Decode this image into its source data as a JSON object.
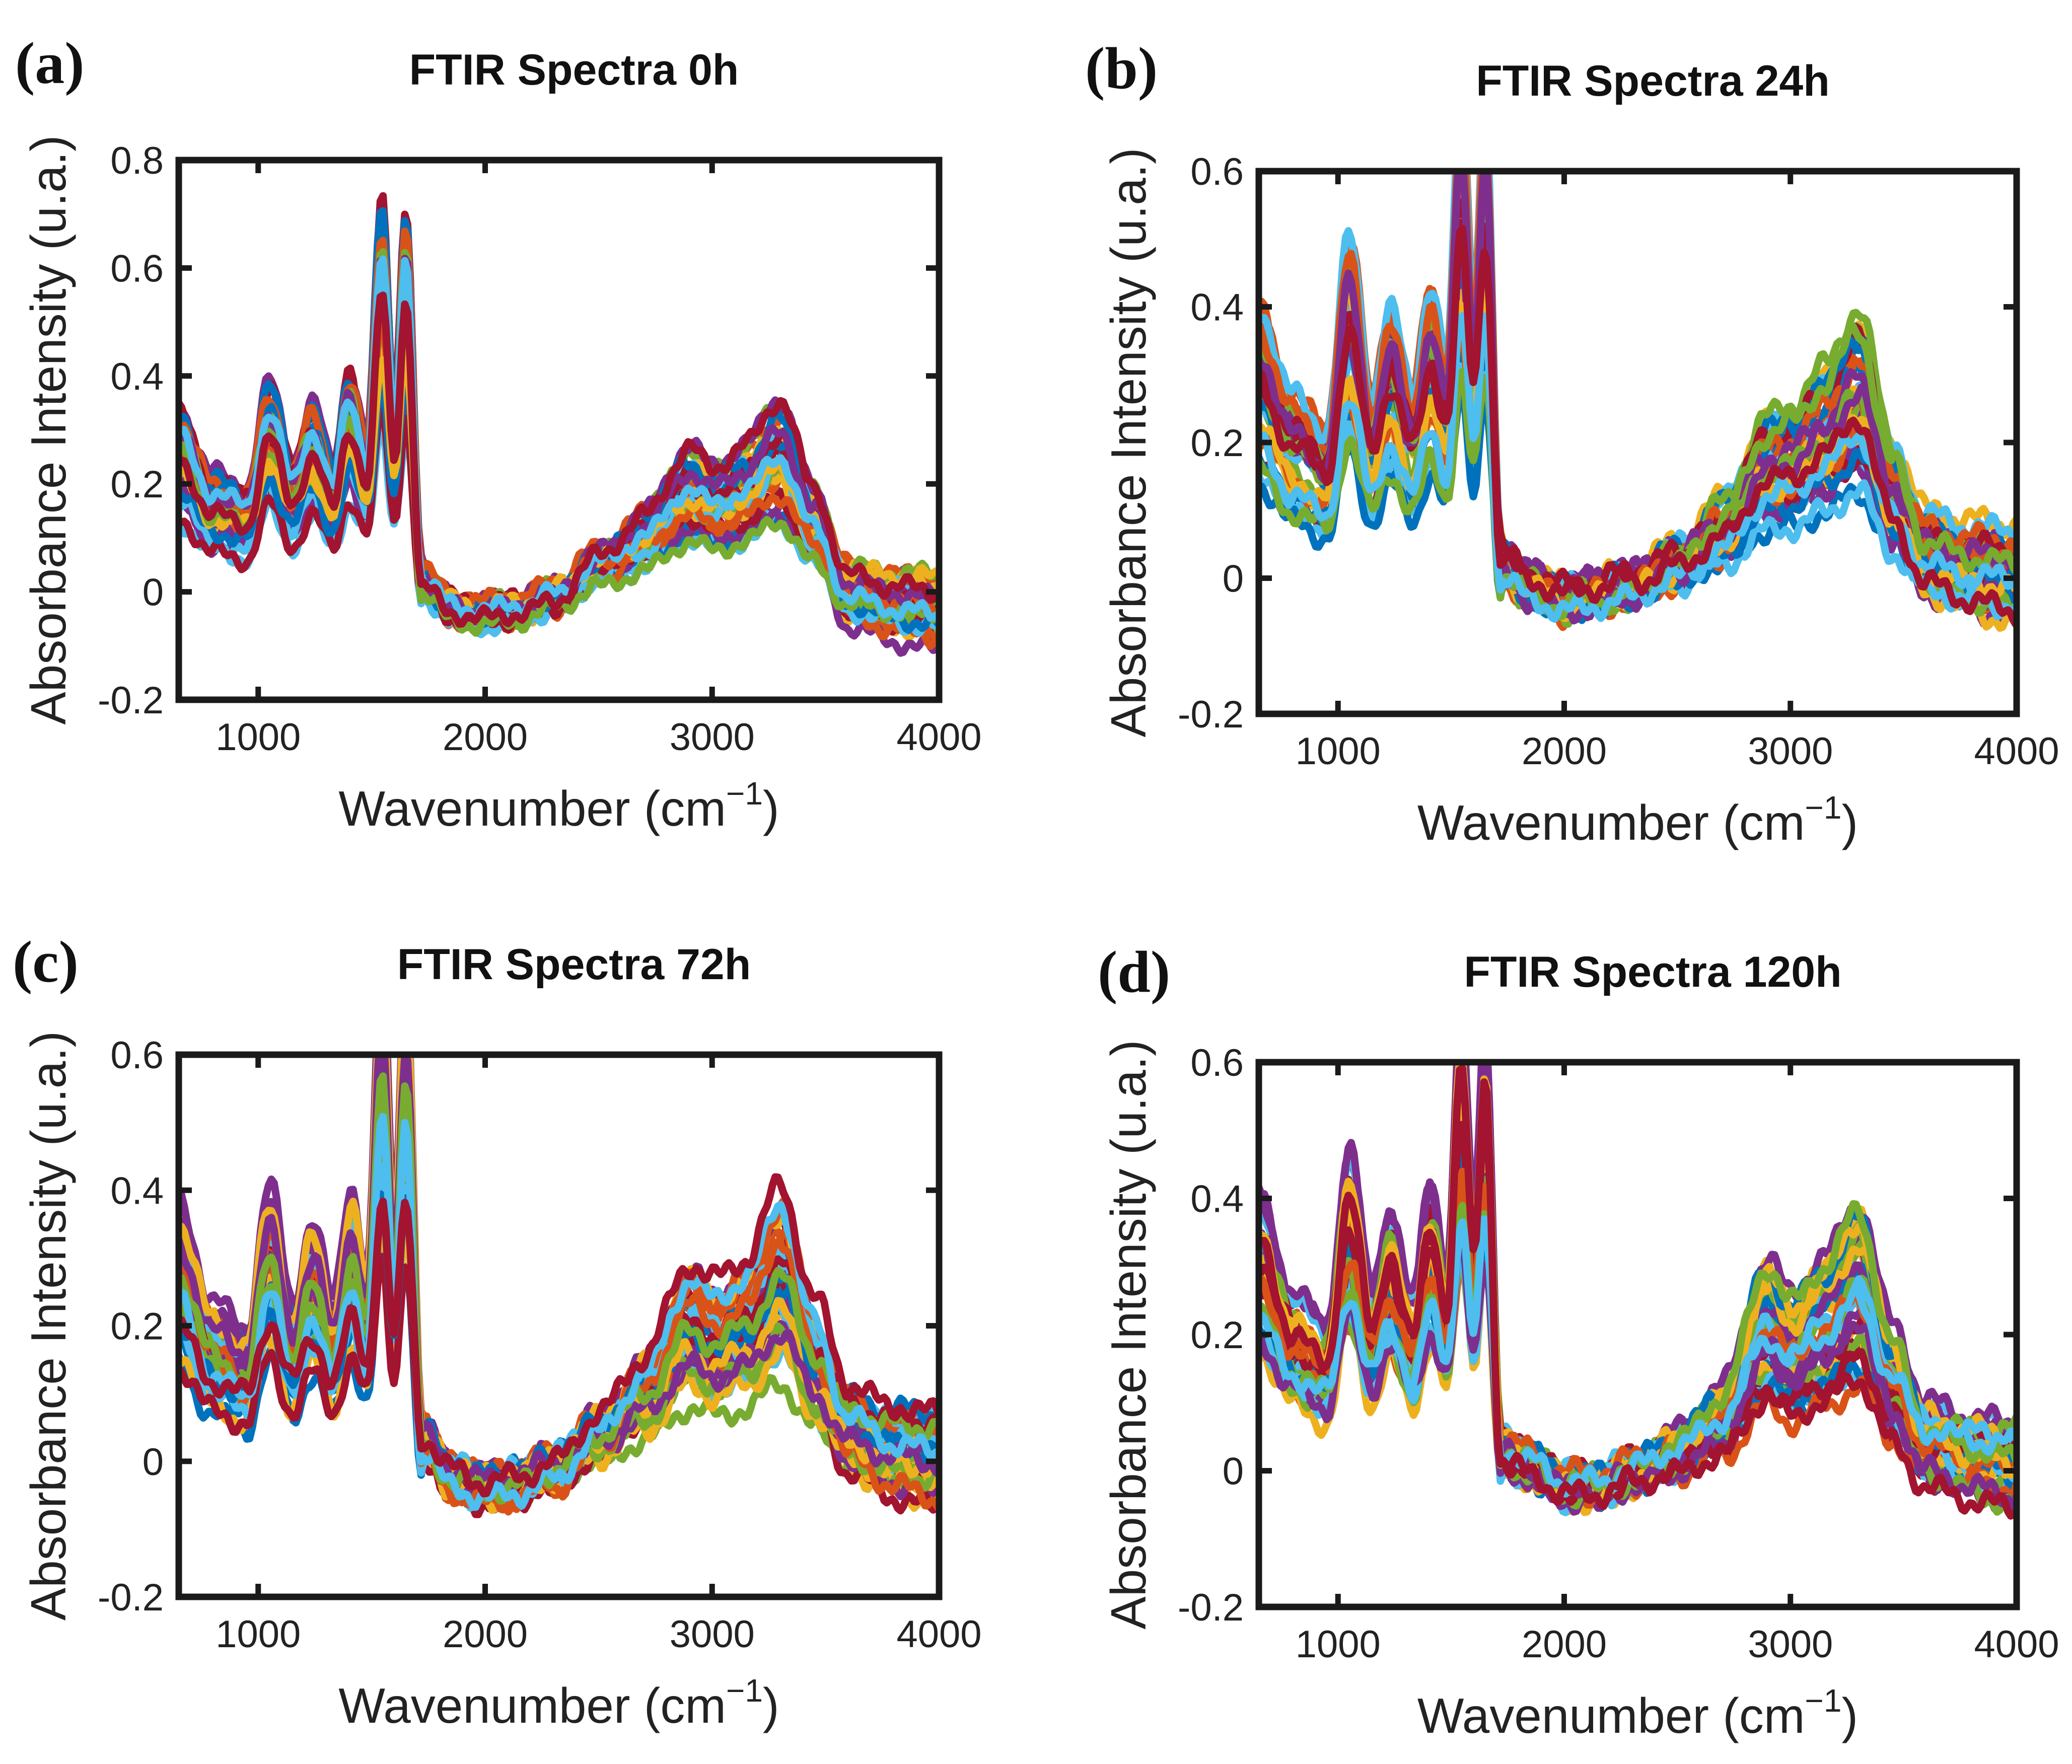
{
  "palette": [
    "#0072BD",
    "#D95319",
    "#EDB120",
    "#7E2F8E",
    "#77AC30",
    "#4DBEEE",
    "#A2142F"
  ],
  "chart_data": [
    {
      "type": "line",
      "panel": "(a)",
      "title": "FTIR Spectra 0h",
      "xlabel": "Wavenumber (cm",
      "xlabel_sup": "−1",
      "xlabel_close": ")",
      "ylabel": "Absorbance Intensity (u.a.)",
      "xlim": [
        650,
        4000
      ],
      "ylim": [
        -0.2,
        0.8
      ],
      "xticks": [
        1000,
        2000,
        3000,
        4000
      ],
      "xtick_labels": [
        "1000",
        "2000",
        "3000",
        "4000"
      ],
      "yticks": [
        -0.2,
        0,
        0.2,
        0.4,
        0.6,
        0.8
      ],
      "ytick_labels": [
        "-0.2",
        "0",
        "0.2",
        "0.4",
        "0.6",
        "0.8"
      ],
      "series_count": 35,
      "representative_profile": {
        "x": [
          650,
          800,
          950,
          1050,
          1150,
          1240,
          1330,
          1400,
          1480,
          1545,
          1600,
          1650,
          1720,
          1850,
          2000,
          2150,
          2300,
          2500,
          2700,
          2900,
          3000,
          3150,
          3300,
          3450,
          3600,
          3800,
          4000
        ],
        "y": [
          0.26,
          0.16,
          0.14,
          0.3,
          0.18,
          0.27,
          0.17,
          0.32,
          0.22,
          0.57,
          0.26,
          0.56,
          0.02,
          -0.03,
          -0.04,
          -0.03,
          -0.01,
          0.05,
          0.1,
          0.19,
          0.16,
          0.19,
          0.25,
          0.12,
          0.0,
          -0.02,
          -0.03
        ]
      }
    },
    {
      "type": "line",
      "panel": "(b)",
      "title": "FTIR Spectra 24h",
      "xlabel": "Wavenumber (cm",
      "xlabel_sup": "−1",
      "xlabel_close": ")",
      "ylabel": "Absorbance Intensity (u.a.)",
      "xlim": [
        650,
        4000
      ],
      "ylim": [
        -0.2,
        0.6
      ],
      "xticks": [
        1000,
        2000,
        3000,
        4000
      ],
      "xtick_labels": [
        "1000",
        "2000",
        "3000",
        "4000"
      ],
      "yticks": [
        -0.2,
        0,
        0.2,
        0.4,
        0.6
      ],
      "ytick_labels": [
        "-0.2",
        "0",
        "0.2",
        "0.4",
        "0.6"
      ],
      "series_count": 35,
      "representative_profile": {
        "x": [
          650,
          800,
          950,
          1050,
          1150,
          1230,
          1330,
          1410,
          1480,
          1545,
          1600,
          1650,
          1720,
          1850,
          2000,
          2150,
          2300,
          2500,
          2700,
          2900,
          3000,
          3150,
          3300,
          3450,
          3600,
          3800,
          4000
        ],
        "y": [
          0.3,
          0.2,
          0.16,
          0.38,
          0.2,
          0.3,
          0.2,
          0.33,
          0.24,
          0.54,
          0.3,
          0.54,
          0.02,
          -0.01,
          -0.03,
          -0.02,
          -0.01,
          0.02,
          0.07,
          0.16,
          0.17,
          0.21,
          0.27,
          0.12,
          0.03,
          0.01,
          0.0
        ]
      }
    },
    {
      "type": "line",
      "panel": "(c)",
      "title": "FTIR Spectra 72h",
      "xlabel": "Wavenumber (cm",
      "xlabel_sup": "−1",
      "xlabel_close": ")",
      "ylabel": "Absorbance Intensity (u.a.)",
      "xlim": [
        650,
        4000
      ],
      "ylim": [
        -0.2,
        0.6
      ],
      "xticks": [
        1000,
        2000,
        3000,
        4000
      ],
      "xtick_labels": [
        "1000",
        "2000",
        "3000",
        "4000"
      ],
      "yticks": [
        -0.2,
        0,
        0.2,
        0.4,
        0.6
      ],
      "ytick_labels": [
        "-0.2",
        "0",
        "0.2",
        "0.4",
        "0.6"
      ],
      "series_count": 35,
      "representative_profile": {
        "x": [
          650,
          800,
          950,
          1050,
          1150,
          1240,
          1330,
          1410,
          1480,
          1545,
          1600,
          1650,
          1720,
          1850,
          2000,
          2150,
          2300,
          2500,
          2700,
          2900,
          3000,
          3150,
          3300,
          3450,
          3600,
          3800,
          4000
        ],
        "y": [
          0.28,
          0.16,
          0.13,
          0.3,
          0.16,
          0.26,
          0.16,
          0.3,
          0.2,
          0.57,
          0.26,
          0.56,
          0.03,
          -0.02,
          -0.04,
          -0.03,
          -0.01,
          0.04,
          0.1,
          0.2,
          0.18,
          0.2,
          0.28,
          0.15,
          0.05,
          0.02,
          0.01
        ]
      }
    },
    {
      "type": "line",
      "panel": "(d)",
      "title": "FTIR Spectra 120h",
      "xlabel": "Wavenumber (cm",
      "xlabel_sup": "−1",
      "xlabel_close": ")",
      "ylabel": "Absorbance Intensity (u.a.)",
      "xlim": [
        650,
        4000
      ],
      "ylim": [
        -0.2,
        0.6
      ],
      "xticks": [
        1000,
        2000,
        3000,
        4000
      ],
      "xtick_labels": [
        "1000",
        "2000",
        "3000",
        "4000"
      ],
      "yticks": [
        -0.2,
        0,
        0.2,
        0.4,
        0.6
      ],
      "ytick_labels": [
        "-0.2",
        "0",
        "0.2",
        "0.4",
        "0.6"
      ],
      "series_count": 35,
      "representative_profile": {
        "x": [
          650,
          800,
          950,
          1050,
          1150,
          1230,
          1330,
          1410,
          1480,
          1545,
          1600,
          1650,
          1720,
          1850,
          2000,
          2150,
          2300,
          2500,
          2700,
          2900,
          3000,
          3150,
          3300,
          3450,
          3600,
          3800,
          4000
        ],
        "y": [
          0.3,
          0.19,
          0.15,
          0.36,
          0.19,
          0.29,
          0.18,
          0.32,
          0.22,
          0.52,
          0.28,
          0.5,
          0.03,
          0.01,
          -0.02,
          -0.02,
          0.0,
          0.03,
          0.08,
          0.22,
          0.18,
          0.22,
          0.28,
          0.14,
          0.05,
          0.03,
          0.02
        ]
      }
    }
  ]
}
